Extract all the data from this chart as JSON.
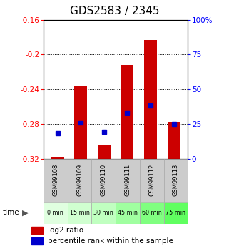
{
  "title": "GDS2583 / 2345",
  "samples": [
    "GSM99108",
    "GSM99109",
    "GSM99110",
    "GSM99111",
    "GSM99112",
    "GSM99113"
  ],
  "time_labels": [
    "0 min",
    "15 min",
    "30 min",
    "45 min",
    "60 min",
    "75 min"
  ],
  "time_colors": [
    "#e0ffe0",
    "#d0ffd0",
    "#c0ffc0",
    "#a0ffa0",
    "#80ff80",
    "#60ff60"
  ],
  "log2_values": [
    -0.318,
    -0.237,
    -0.305,
    -0.212,
    -0.183,
    -0.278
  ],
  "log2_baseline": -0.32,
  "percentile_values": [
    18,
    26,
    19,
    33,
    38,
    25
  ],
  "ylim_left": [
    -0.32,
    -0.16
  ],
  "ylim_right": [
    0,
    100
  ],
  "yticks_left": [
    -0.32,
    -0.28,
    -0.24,
    -0.2,
    -0.16
  ],
  "yticks_right": [
    0,
    25,
    50,
    75,
    100
  ],
  "bar_color": "#cc0000",
  "square_color": "#0000cc",
  "bar_width": 0.55,
  "background_color": "#ffffff",
  "title_fontsize": 11,
  "tick_fontsize": 7.5,
  "legend_fontsize": 7.5
}
